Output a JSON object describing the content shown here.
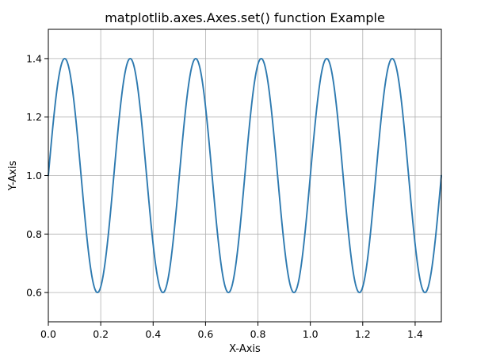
{
  "chart_data": {
    "type": "line",
    "title": "matplotlib.axes.Axes.set() function Example",
    "xlabel": "X-Axis",
    "ylabel": "Y-Axis",
    "xlim": [
      0.0,
      1.5
    ],
    "ylim": [
      0.5,
      1.5
    ],
    "grid": true,
    "x_ticks": [
      0.0,
      0.2,
      0.4,
      0.6,
      0.8,
      1.0,
      1.2,
      1.4
    ],
    "x_tick_labels": [
      "0.0",
      "0.2",
      "0.4",
      "0.6",
      "0.8",
      "1.0",
      "1.2",
      "1.4"
    ],
    "y_ticks": [
      0.6,
      0.8,
      1.0,
      1.2,
      1.4
    ],
    "y_tick_labels": [
      "0.6",
      "0.8",
      "1.0",
      "1.2",
      "1.4"
    ],
    "series": [
      {
        "color": "#2e7ab0",
        "x": [
          0.0,
          0.0625,
          0.125,
          0.1875,
          0.25,
          0.3125,
          0.375,
          0.4375,
          0.5,
          0.5625,
          0.625,
          0.6875,
          0.75,
          0.8125,
          0.875,
          0.9375,
          1.0,
          1.0625,
          1.125,
          1.1875,
          1.25,
          1.3125,
          1.375,
          1.4375,
          1.5
        ],
        "y": [
          1.0,
          1.4,
          1.0,
          0.6,
          1.0,
          1.4,
          1.0,
          0.6,
          1.0,
          1.4,
          1.0,
          0.6,
          1.0,
          1.4,
          1.0,
          0.6,
          1.0,
          1.4,
          1.0,
          0.6,
          1.0,
          1.4,
          1.0,
          0.6,
          1.0
        ]
      }
    ]
  }
}
